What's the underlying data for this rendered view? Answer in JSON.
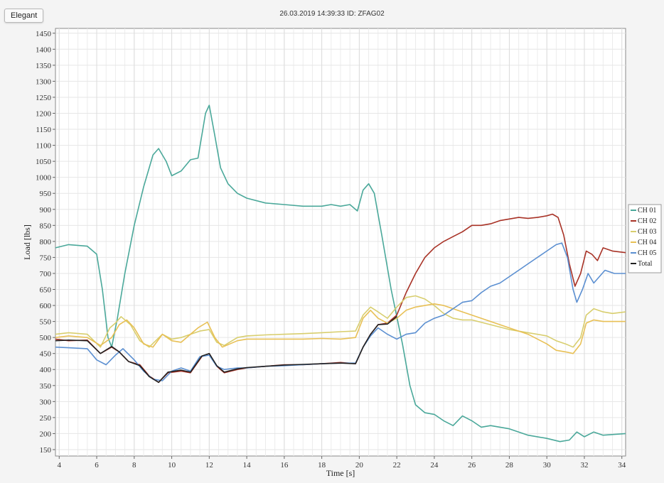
{
  "header": {
    "badge_label": "Elegant",
    "title": "26.03.2019 14:39:33 ID: ZFAG02"
  },
  "chart_data": {
    "type": "line",
    "xlabel": "Time  [s]",
    "ylabel": "Load [lbs]",
    "xlim": [
      3.8,
      34.2
    ],
    "ylim": [
      130,
      1465
    ],
    "x_ticks": [
      4,
      6,
      8,
      10,
      12,
      14,
      16,
      18,
      20,
      22,
      24,
      26,
      28,
      30,
      32,
      34
    ],
    "y_ticks": [
      150,
      200,
      250,
      300,
      350,
      400,
      450,
      500,
      550,
      600,
      650,
      700,
      750,
      800,
      850,
      900,
      950,
      1000,
      1050,
      1100,
      1150,
      1200,
      1250,
      1300,
      1350,
      1400,
      1450
    ],
    "grid": true,
    "legend_position": "right",
    "series": [
      {
        "name": "CH 01",
        "color": "#4aa89a",
        "points": [
          [
            3.8,
            780
          ],
          [
            4.5,
            790
          ],
          [
            5.5,
            785
          ],
          [
            6.0,
            760
          ],
          [
            6.3,
            650
          ],
          [
            6.6,
            500
          ],
          [
            6.8,
            470
          ],
          [
            7.1,
            560
          ],
          [
            7.5,
            700
          ],
          [
            8.0,
            850
          ],
          [
            8.5,
            970
          ],
          [
            9.0,
            1070
          ],
          [
            9.3,
            1090
          ],
          [
            9.7,
            1050
          ],
          [
            10.0,
            1005
          ],
          [
            10.5,
            1020
          ],
          [
            11.0,
            1055
          ],
          [
            11.4,
            1060
          ],
          [
            11.8,
            1200
          ],
          [
            12.0,
            1225
          ],
          [
            12.3,
            1130
          ],
          [
            12.6,
            1030
          ],
          [
            13.0,
            980
          ],
          [
            13.5,
            950
          ],
          [
            14.0,
            935
          ],
          [
            15.0,
            920
          ],
          [
            16.0,
            915
          ],
          [
            17.0,
            910
          ],
          [
            18.0,
            910
          ],
          [
            18.5,
            915
          ],
          [
            19.0,
            910
          ],
          [
            19.5,
            915
          ],
          [
            19.9,
            895
          ],
          [
            20.2,
            960
          ],
          [
            20.5,
            980
          ],
          [
            20.8,
            950
          ],
          [
            21.2,
            820
          ],
          [
            21.7,
            650
          ],
          [
            22.3,
            480
          ],
          [
            22.7,
            350
          ],
          [
            23.0,
            290
          ],
          [
            23.5,
            265
          ],
          [
            24.0,
            260
          ],
          [
            24.5,
            240
          ],
          [
            25.0,
            225
          ],
          [
            25.5,
            255
          ],
          [
            26.0,
            240
          ],
          [
            26.5,
            220
          ],
          [
            27.0,
            225
          ],
          [
            28.0,
            215
          ],
          [
            29.0,
            195
          ],
          [
            30.0,
            185
          ],
          [
            30.7,
            175
          ],
          [
            31.2,
            180
          ],
          [
            31.6,
            205
          ],
          [
            32.0,
            190
          ],
          [
            32.5,
            205
          ],
          [
            33.0,
            195
          ],
          [
            34.2,
            200
          ]
        ]
      },
      {
        "name": "CH 02",
        "color": "#a83226",
        "points": [
          [
            3.8,
            495
          ],
          [
            4.5,
            490
          ],
          [
            5.5,
            492
          ],
          [
            6.2,
            450
          ],
          [
            6.8,
            470
          ],
          [
            7.2,
            455
          ],
          [
            7.7,
            425
          ],
          [
            8.3,
            415
          ],
          [
            8.8,
            380
          ],
          [
            9.3,
            360
          ],
          [
            9.8,
            390
          ],
          [
            10.5,
            395
          ],
          [
            11.0,
            390
          ],
          [
            11.6,
            440
          ],
          [
            12.0,
            450
          ],
          [
            12.4,
            410
          ],
          [
            12.8,
            390
          ],
          [
            13.5,
            400
          ],
          [
            14.0,
            405
          ],
          [
            15.0,
            410
          ],
          [
            16.0,
            415
          ],
          [
            17.0,
            415
          ],
          [
            18.0,
            418
          ],
          [
            19.0,
            422
          ],
          [
            19.8,
            418
          ],
          [
            20.2,
            470
          ],
          [
            20.6,
            510
          ],
          [
            21.0,
            540
          ],
          [
            21.5,
            545
          ],
          [
            22.0,
            570
          ],
          [
            22.5,
            640
          ],
          [
            23.0,
            700
          ],
          [
            23.5,
            750
          ],
          [
            24.0,
            780
          ],
          [
            24.5,
            800
          ],
          [
            25.0,
            815
          ],
          [
            25.5,
            830
          ],
          [
            26.0,
            850
          ],
          [
            26.5,
            850
          ],
          [
            27.0,
            855
          ],
          [
            27.5,
            865
          ],
          [
            28.0,
            870
          ],
          [
            28.5,
            875
          ],
          [
            29.0,
            872
          ],
          [
            29.5,
            875
          ],
          [
            30.0,
            880
          ],
          [
            30.3,
            885
          ],
          [
            30.6,
            875
          ],
          [
            30.9,
            820
          ],
          [
            31.2,
            730
          ],
          [
            31.5,
            660
          ],
          [
            31.8,
            700
          ],
          [
            32.1,
            770
          ],
          [
            32.4,
            760
          ],
          [
            32.7,
            740
          ],
          [
            33.0,
            780
          ],
          [
            33.5,
            770
          ],
          [
            34.2,
            765
          ]
        ]
      },
      {
        "name": "CH 03",
        "color": "#d8ce6e",
        "points": [
          [
            3.8,
            510
          ],
          [
            4.5,
            515
          ],
          [
            5.5,
            510
          ],
          [
            6.2,
            470
          ],
          [
            6.7,
            530
          ],
          [
            7.0,
            545
          ],
          [
            7.3,
            565
          ],
          [
            7.8,
            540
          ],
          [
            8.3,
            490
          ],
          [
            8.8,
            470
          ],
          [
            9.5,
            510
          ],
          [
            10.0,
            495
          ],
          [
            10.5,
            500
          ],
          [
            11.0,
            510
          ],
          [
            11.5,
            520
          ],
          [
            12.0,
            525
          ],
          [
            12.4,
            485
          ],
          [
            12.8,
            475
          ],
          [
            13.5,
            500
          ],
          [
            14.0,
            505
          ],
          [
            15.0,
            508
          ],
          [
            16.0,
            510
          ],
          [
            17.0,
            512
          ],
          [
            18.0,
            515
          ],
          [
            19.0,
            518
          ],
          [
            19.8,
            520
          ],
          [
            20.2,
            570
          ],
          [
            20.6,
            595
          ],
          [
            21.0,
            580
          ],
          [
            21.5,
            560
          ],
          [
            22.0,
            595
          ],
          [
            22.5,
            625
          ],
          [
            23.0,
            630
          ],
          [
            23.5,
            620
          ],
          [
            24.0,
            600
          ],
          [
            24.5,
            575
          ],
          [
            25.0,
            560
          ],
          [
            25.5,
            555
          ],
          [
            26.0,
            555
          ],
          [
            27.0,
            540
          ],
          [
            28.0,
            525
          ],
          [
            29.0,
            515
          ],
          [
            30.0,
            505
          ],
          [
            30.5,
            490
          ],
          [
            31.0,
            480
          ],
          [
            31.4,
            470
          ],
          [
            31.8,
            500
          ],
          [
            32.1,
            570
          ],
          [
            32.5,
            590
          ],
          [
            33.0,
            580
          ],
          [
            33.5,
            575
          ],
          [
            34.2,
            580
          ]
        ]
      },
      {
        "name": "CH 04",
        "color": "#e8c055",
        "points": [
          [
            3.8,
            500
          ],
          [
            4.5,
            505
          ],
          [
            5.5,
            500
          ],
          [
            6.2,
            475
          ],
          [
            6.8,
            500
          ],
          [
            7.2,
            540
          ],
          [
            7.6,
            555
          ],
          [
            8.0,
            530
          ],
          [
            8.5,
            480
          ],
          [
            9.0,
            470
          ],
          [
            9.5,
            510
          ],
          [
            10.0,
            490
          ],
          [
            10.5,
            485
          ],
          [
            11.0,
            510
          ],
          [
            11.4,
            530
          ],
          [
            11.9,
            548
          ],
          [
            12.3,
            500
          ],
          [
            12.7,
            470
          ],
          [
            13.5,
            490
          ],
          [
            14.0,
            495
          ],
          [
            15.0,
            495
          ],
          [
            16.0,
            495
          ],
          [
            17.0,
            495
          ],
          [
            18.0,
            497
          ],
          [
            19.0,
            495
          ],
          [
            19.8,
            500
          ],
          [
            20.2,
            560
          ],
          [
            20.6,
            585
          ],
          [
            21.0,
            560
          ],
          [
            21.5,
            545
          ],
          [
            22.0,
            560
          ],
          [
            22.5,
            585
          ],
          [
            23.0,
            595
          ],
          [
            23.5,
            600
          ],
          [
            24.0,
            605
          ],
          [
            24.5,
            600
          ],
          [
            25.0,
            590
          ],
          [
            26.0,
            570
          ],
          [
            27.0,
            550
          ],
          [
            28.0,
            530
          ],
          [
            29.0,
            510
          ],
          [
            30.0,
            480
          ],
          [
            30.5,
            460
          ],
          [
            31.0,
            455
          ],
          [
            31.4,
            450
          ],
          [
            31.8,
            480
          ],
          [
            32.1,
            545
          ],
          [
            32.5,
            555
          ],
          [
            33.0,
            550
          ],
          [
            34.2,
            550
          ]
        ]
      },
      {
        "name": "CH 05",
        "color": "#5b8fd1",
        "points": [
          [
            3.8,
            470
          ],
          [
            4.5,
            468
          ],
          [
            5.5,
            465
          ],
          [
            6.0,
            430
          ],
          [
            6.5,
            415
          ],
          [
            7.0,
            445
          ],
          [
            7.4,
            465
          ],
          [
            8.0,
            430
          ],
          [
            8.5,
            395
          ],
          [
            9.0,
            370
          ],
          [
            9.5,
            365
          ],
          [
            10.0,
            395
          ],
          [
            10.5,
            405
          ],
          [
            11.0,
            395
          ],
          [
            11.5,
            440
          ],
          [
            12.0,
            445
          ],
          [
            12.4,
            410
          ],
          [
            12.8,
            400
          ],
          [
            13.5,
            405
          ],
          [
            14.0,
            405
          ],
          [
            15.0,
            410
          ],
          [
            16.0,
            412
          ],
          [
            17.0,
            415
          ],
          [
            18.0,
            418
          ],
          [
            19.0,
            420
          ],
          [
            19.8,
            420
          ],
          [
            20.2,
            470
          ],
          [
            20.6,
            505
          ],
          [
            21.0,
            530
          ],
          [
            21.5,
            510
          ],
          [
            22.0,
            495
          ],
          [
            22.5,
            510
          ],
          [
            23.0,
            515
          ],
          [
            23.5,
            545
          ],
          [
            24.0,
            560
          ],
          [
            24.5,
            570
          ],
          [
            25.0,
            590
          ],
          [
            25.5,
            610
          ],
          [
            26.0,
            615
          ],
          [
            26.5,
            640
          ],
          [
            27.0,
            660
          ],
          [
            27.5,
            670
          ],
          [
            28.0,
            690
          ],
          [
            28.5,
            710
          ],
          [
            29.0,
            730
          ],
          [
            29.5,
            750
          ],
          [
            30.0,
            770
          ],
          [
            30.5,
            790
          ],
          [
            30.8,
            795
          ],
          [
            31.1,
            750
          ],
          [
            31.4,
            650
          ],
          [
            31.6,
            610
          ],
          [
            31.9,
            650
          ],
          [
            32.2,
            700
          ],
          [
            32.5,
            670
          ],
          [
            32.8,
            690
          ],
          [
            33.1,
            710
          ],
          [
            33.6,
            700
          ],
          [
            34.2,
            700
          ]
        ]
      },
      {
        "name": "Total",
        "color": "#222222",
        "points": [
          [
            3.8,
            490
          ],
          [
            4.5,
            492
          ],
          [
            5.5,
            490
          ],
          [
            6.2,
            450
          ],
          [
            6.8,
            472
          ],
          [
            7.2,
            455
          ],
          [
            7.7,
            425
          ],
          [
            8.3,
            412
          ],
          [
            8.8,
            378
          ],
          [
            9.3,
            360
          ],
          [
            9.8,
            392
          ],
          [
            10.5,
            398
          ],
          [
            11.0,
            392
          ],
          [
            11.6,
            442
          ],
          [
            12.0,
            450
          ],
          [
            12.4,
            412
          ],
          [
            12.8,
            392
          ],
          [
            13.5,
            402
          ],
          [
            14.0,
            406
          ],
          [
            15.0,
            410
          ],
          [
            16.0,
            414
          ],
          [
            17.0,
            416
          ],
          [
            18.0,
            418
          ],
          [
            19.0,
            420
          ],
          [
            19.8,
            418
          ],
          [
            20.2,
            470
          ],
          [
            20.6,
            510
          ],
          [
            21.0,
            540
          ],
          [
            21.5,
            542
          ],
          [
            22.0,
            565
          ]
        ]
      }
    ]
  }
}
